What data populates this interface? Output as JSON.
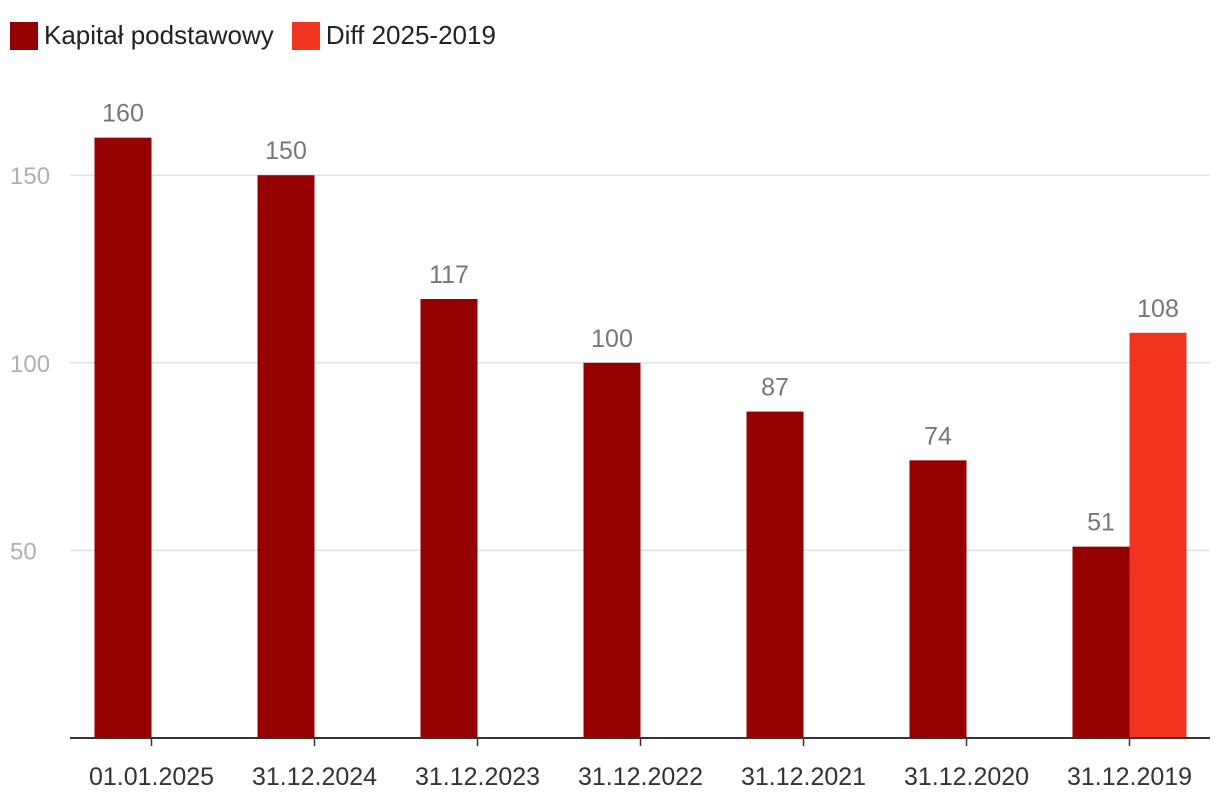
{
  "legend": {
    "series_1": "Kapitał podstawowy",
    "series_2": "Diff 2025-2019"
  },
  "colors": {
    "series_1": "#950101",
    "series_2": "#f13420",
    "grid": "#e3e3e3",
    "axis": "#333333"
  },
  "chart_data": {
    "type": "bar",
    "title": "",
    "xlabel": "",
    "ylabel": "",
    "ylim": [
      0,
      160
    ],
    "yticks": [
      50,
      100,
      150
    ],
    "categories": [
      "01.01.2025",
      "31.12.2024",
      "31.12.2023",
      "31.12.2022",
      "31.12.2021",
      "31.12.2020",
      "31.12.2019"
    ],
    "series": [
      {
        "name": "Kapitał podstawowy",
        "values": [
          160,
          150,
          117,
          100,
          87,
          74,
          51
        ]
      },
      {
        "name": "Diff 2025-2019",
        "values": [
          null,
          null,
          null,
          null,
          null,
          null,
          108
        ]
      }
    ]
  }
}
